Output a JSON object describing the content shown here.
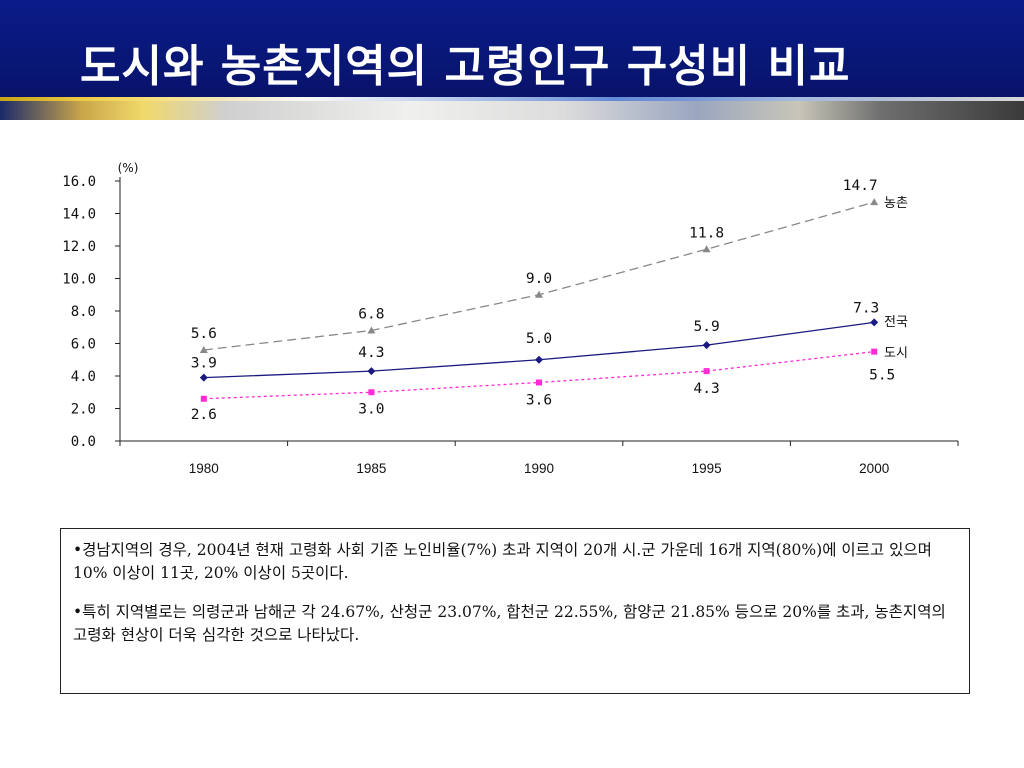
{
  "header": {
    "title": "도시와 농촌지역의 고령인구 구성비 비교"
  },
  "chart_data": {
    "type": "line",
    "unit_label": "(%)",
    "categories": [
      "1980",
      "1985",
      "1990",
      "1995",
      "2000"
    ],
    "ylim": [
      0,
      16
    ],
    "yticks": [
      "0.0",
      "2.0",
      "4.0",
      "6.0",
      "8.0",
      "10.0",
      "12.0",
      "14.0",
      "16.0"
    ],
    "series": [
      {
        "name": "농촌",
        "values": [
          5.6,
          6.8,
          9.0,
          11.8,
          14.7
        ],
        "labels": [
          "5.6",
          "6.8",
          "9.0",
          "11.8",
          "14.7"
        ],
        "color": "#888888",
        "marker": "triangle",
        "dash": "dashed"
      },
      {
        "name": "전국",
        "values": [
          3.9,
          4.3,
          5.0,
          5.9,
          7.3
        ],
        "labels": [
          "3.9",
          "4.3",
          "5.0",
          "5.9",
          "7.3"
        ],
        "color": "#1a1a80",
        "marker": "diamond",
        "dash": "solid"
      },
      {
        "name": "도시",
        "values": [
          2.6,
          3.0,
          3.6,
          4.3,
          5.5
        ],
        "labels": [
          "2.6",
          "3.0",
          "3.6",
          "4.3",
          "5.5"
        ],
        "color": "#ff2bd6",
        "marker": "square",
        "dash": "dotted"
      }
    ]
  },
  "info": {
    "paragraphs": [
      "•경남지역의 경우, 2004년 현재 고령화 사회 기준 노인비율(7%) 초과 지역이 20개 시.군 가운데 16개 지역(80%)에 이르고 있으며 10% 이상이 11곳, 20% 이상이 5곳이다.",
      "•특히 지역별로는 의령군과 남해군 각 24.67%, 산청군 23.07%, 합천군 22.55%, 함양군 21.85% 등으로 20%를 초과, 농촌지역의 고령화 현상이 더욱 심각한 것으로 나타났다."
    ]
  }
}
